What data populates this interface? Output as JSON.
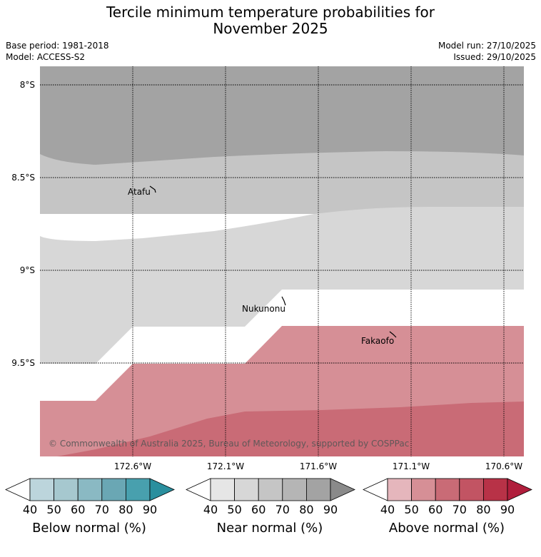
{
  "title": {
    "line1": "Tercile minimum temperature probabilities for",
    "line2": "November 2025"
  },
  "meta": {
    "base_period": "Base period: 1981-2018",
    "model": "Model: ACCESS-S2",
    "model_run": "Model run: 27/10/2025",
    "issued": "Issued: 29/10/2025"
  },
  "map": {
    "latitude_labels": [
      "8°S",
      "8.5°S",
      "9°S",
      "9.5°S"
    ],
    "longitude_labels": [
      "172.6°W",
      "172.1°W",
      "171.6°W",
      "171.1°W",
      "170.6°W"
    ],
    "places": [
      "Atafu",
      "Nukunonu",
      "Fakaofo"
    ],
    "copyright": "© Commonwealth of Australia 2025, Bureau of Meteorology, supported by COSPPac",
    "category_colors": {
      "near_70_80": "#a3a3a3",
      "near_60_70": "#c5c5c5",
      "near_50_60": "#d7d7d7",
      "above_50_60": "#d68f96",
      "above_60_70": "#c96b76"
    }
  },
  "colorbars": [
    {
      "label": "Below normal (%)",
      "ticks": [
        "40",
        "50",
        "60",
        "70",
        "80",
        "90"
      ],
      "colors": [
        "#bcd5dc",
        "#a6c8cf",
        "#8ab9c3",
        "#6aa7b4",
        "#48a0ae",
        "#2a8f9e"
      ]
    },
    {
      "label": "Near normal (%)",
      "ticks": [
        "40",
        "50",
        "60",
        "70",
        "80",
        "90"
      ],
      "colors": [
        "#e6e6e6",
        "#d7d7d7",
        "#c5c5c5",
        "#b5b5b5",
        "#a3a3a3",
        "#8a8a8a"
      ]
    },
    {
      "label": "Above normal (%)",
      "ticks": [
        "40",
        "50",
        "60",
        "70",
        "80",
        "90"
      ],
      "colors": [
        "#e5b6bc",
        "#d68f96",
        "#c96b76",
        "#c25463",
        "#b83247",
        "#b01e3c"
      ]
    }
  ]
}
